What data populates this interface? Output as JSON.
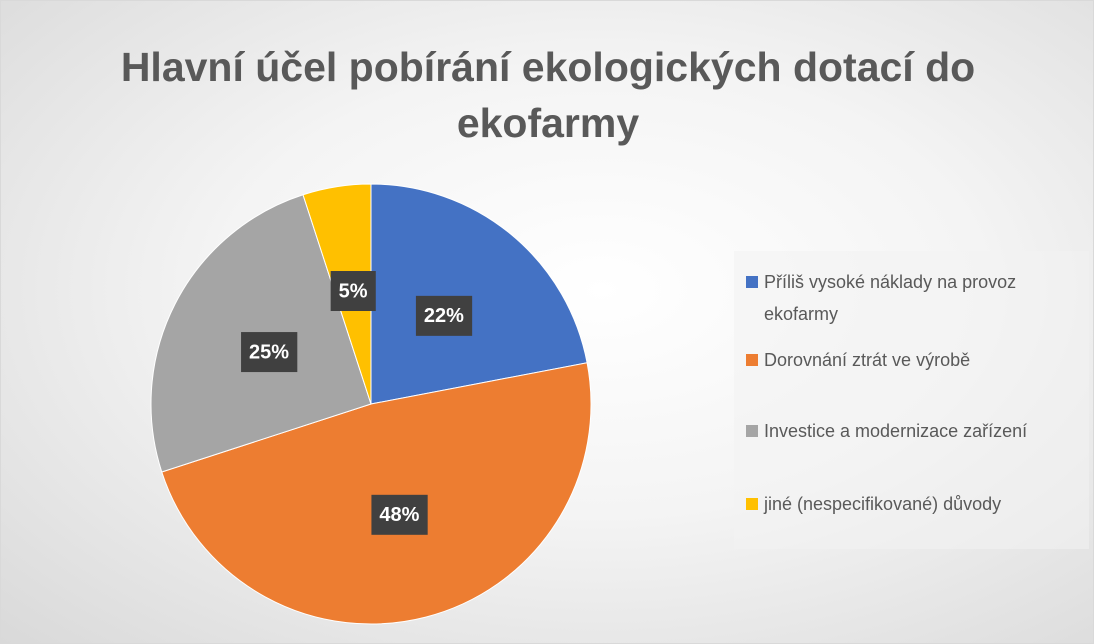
{
  "chart_data": {
    "type": "pie",
    "title": "Hlavní účel pobírání ekologických dotací do ekofarmy",
    "categories": [
      "Příliš vysoké náklady na provoz ekofarmy",
      "Dorovnání ztrát ve výrobě",
      "Investice a modernizace zařízení",
      "jiné (nespecifikované) důvody"
    ],
    "values": [
      22,
      48,
      25,
      5
    ],
    "value_labels": [
      "22%",
      "48%",
      "25%",
      "5%"
    ],
    "colors": [
      "#4472c4",
      "#ed7d31",
      "#a5a5a5",
      "#ffc000"
    ],
    "legend": "right"
  }
}
